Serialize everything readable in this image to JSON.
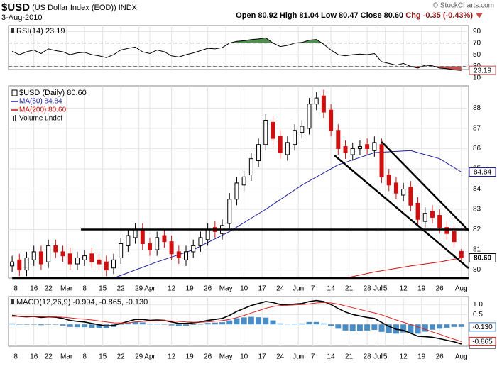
{
  "chart_data": {
    "type": "stock",
    "symbol": "$USD",
    "title": "(US Dollar Index (EOD))",
    "exchange": "INDX",
    "date": "3-Aug-2010",
    "quote": "Open 80.92  High 81.04  Low 80.47  Close 80.60",
    "change": "Chg -0.35 (-0.43%)",
    "source": "© StockCharts.com",
    "x": [
      0,
      2,
      4,
      6,
      8,
      10,
      12,
      14,
      16,
      18,
      20,
      22,
      24,
      26,
      28,
      30,
      32,
      34,
      36,
      38,
      40,
      42,
      44,
      46,
      48,
      50,
      52,
      54,
      56,
      58,
      60,
      62,
      64,
      66,
      68,
      70,
      72,
      74,
      76,
      78,
      80,
      82,
      84,
      86,
      88,
      90,
      92,
      94,
      96,
      98,
      100,
      102,
      104,
      106,
      108,
      110,
      112,
      114,
      116,
      118,
      120,
      122,
      124
    ],
    "xlim": [
      -1,
      126
    ],
    "xticks": [
      {
        "value": 1,
        "label": "8"
      },
      {
        "value": 6,
        "label": "16"
      },
      {
        "value": 10,
        "label": "22"
      },
      {
        "value": 15,
        "label": "Mar"
      },
      {
        "value": 20,
        "label": "8"
      },
      {
        "value": 25,
        "label": "15"
      },
      {
        "value": 30,
        "label": "22"
      },
      {
        "value": 35,
        "label": "29"
      },
      {
        "value": 38,
        "label": "Apr"
      },
      {
        "value": 44,
        "label": "12"
      },
      {
        "value": 49,
        "label": "19"
      },
      {
        "value": 54,
        "label": "26"
      },
      {
        "value": 59,
        "label": "May"
      },
      {
        "value": 64,
        "label": "10"
      },
      {
        "value": 69,
        "label": "17"
      },
      {
        "value": 74,
        "label": "24"
      },
      {
        "value": 79,
        "label": "Jun"
      },
      {
        "value": 83,
        "label": "7"
      },
      {
        "value": 88,
        "label": "14"
      },
      {
        "value": 93,
        "label": "21"
      },
      {
        "value": 98,
        "label": "28"
      },
      {
        "value": 101,
        "label": "Jul"
      },
      {
        "value": 103,
        "label": "5"
      },
      {
        "value": 108,
        "label": "12"
      },
      {
        "value": 113,
        "label": "19"
      },
      {
        "value": 118,
        "label": "26"
      },
      {
        "value": 124,
        "label": "Aug"
      }
    ],
    "panels": [
      {
        "type": "line",
        "title": "RSI(14) 23.19",
        "ylim": [
          10,
          100
        ],
        "yticks": [
          90,
          70,
          50,
          30,
          10
        ],
        "bands": [
          70,
          30
        ],
        "fill_above": {
          "level": 70,
          "color": "#4f8f4f"
        },
        "fill_below": {
          "level": 30,
          "color": "#c0504d"
        },
        "series": [
          {
            "color": "#000000",
            "end_label": "23.19",
            "values": [
              56,
              50,
              55,
              58,
              52,
              60,
              57,
              55,
              50,
              53,
              54,
              50,
              48,
              45,
              50,
              58,
              61,
              63,
              55,
              52,
              58,
              55,
              48,
              46,
              50,
              53,
              57,
              61,
              60,
              62,
              70,
              73,
              74,
              76,
              77,
              79,
              70,
              64,
              66,
              70,
              71,
              75,
              76,
              68,
              58,
              50,
              48,
              50,
              51,
              50,
              52,
              38,
              35,
              32,
              35,
              30,
              27,
              32,
              31,
              27,
              26,
              24,
              23.19
            ]
          }
        ]
      },
      {
        "type": "candlestick",
        "xaxis": true,
        "ylim": [
          79.6,
          89.1
        ],
        "yticks": [
          80,
          81,
          82,
          83,
          84,
          85,
          86,
          87,
          88
        ],
        "candles": {
          "name": "$USD (Daily) 80.60",
          "end_label": "80.60",
          "up_color": "#000000",
          "down_color": "#d01010",
          "open": [
            80.2,
            80.5,
            80.0,
            80.5,
            80.9,
            80.4,
            81.2,
            80.9,
            80.8,
            80.3,
            80.5,
            80.8,
            80.5,
            80.4,
            80.1,
            80.6,
            81.2,
            81.6,
            82.0,
            81.3,
            81.0,
            81.7,
            81.4,
            80.9,
            80.5,
            80.9,
            81.2,
            81.5,
            82.1,
            81.8,
            82.3,
            83.5,
            84.2,
            84.7,
            85.4,
            86.2,
            87.3,
            86.6,
            85.7,
            86.2,
            86.8,
            87.0,
            88.2,
            88.6,
            87.9,
            86.9,
            86.1,
            85.7,
            86.0,
            86.2,
            85.9,
            86.2,
            84.7,
            84.3,
            83.7,
            84.1,
            83.3,
            82.4,
            82.9,
            82.7,
            82.1,
            81.9,
            80.92
          ],
          "high": [
            80.7,
            80.8,
            80.9,
            81.2,
            81.2,
            81.5,
            81.5,
            81.2,
            81.1,
            80.9,
            81.0,
            81.1,
            80.8,
            80.7,
            80.8,
            81.6,
            82.0,
            82.3,
            82.3,
            81.6,
            81.9,
            82.0,
            81.7,
            81.2,
            81.2,
            81.5,
            81.9,
            82.3,
            82.4,
            82.5,
            83.8,
            84.6,
            84.9,
            85.8,
            86.5,
            87.7,
            87.6,
            86.9,
            86.6,
            87.2,
            87.4,
            88.5,
            88.8,
            88.9,
            88.2,
            87.2,
            86.4,
            86.3,
            86.4,
            86.5,
            86.6,
            86.5,
            85.0,
            84.6,
            84.3,
            84.4,
            83.6,
            83.1,
            83.2,
            83.0,
            82.4,
            82.2,
            81.04
          ],
          "low": [
            79.9,
            79.7,
            79.7,
            80.2,
            80.0,
            80.1,
            80.6,
            80.4,
            80.0,
            80.0,
            80.2,
            80.1,
            80.0,
            79.7,
            79.8,
            80.3,
            80.9,
            81.3,
            81.0,
            80.7,
            80.7,
            81.1,
            80.5,
            80.3,
            80.2,
            80.6,
            80.9,
            81.2,
            81.6,
            81.5,
            82.0,
            83.2,
            83.9,
            84.4,
            85.1,
            85.9,
            86.2,
            85.5,
            85.4,
            85.9,
            86.5,
            86.7,
            87.9,
            87.5,
            86.6,
            85.7,
            85.5,
            85.4,
            85.7,
            85.7,
            85.6,
            84.3,
            83.9,
            83.5,
            83.4,
            82.9,
            82.2,
            82.1,
            82.3,
            81.8,
            81.5,
            81.1,
            80.47
          ],
          "close": [
            80.4,
            80.0,
            80.6,
            80.9,
            80.3,
            81.2,
            80.9,
            80.7,
            80.3,
            80.6,
            80.7,
            80.4,
            80.3,
            80.0,
            80.5,
            81.3,
            81.7,
            82.0,
            81.3,
            81.0,
            81.6,
            81.4,
            80.8,
            80.6,
            80.9,
            81.2,
            81.6,
            82.0,
            81.9,
            82.2,
            83.5,
            84.3,
            84.6,
            85.5,
            86.2,
            87.4,
            86.5,
            85.8,
            86.3,
            86.9,
            87.1,
            88.2,
            88.5,
            87.8,
            86.9,
            86.0,
            85.8,
            86.0,
            86.1,
            86.0,
            86.3,
            84.6,
            84.2,
            83.8,
            84.0,
            83.2,
            82.5,
            82.8,
            82.6,
            82.1,
            81.8,
            81.4,
            80.6
          ]
        },
        "overlays": [
          {
            "name": "MA(50) 84.84",
            "color": "#1c1c9c",
            "end_label": "84.84",
            "x": [
              28,
              40,
              50,
              60,
              70,
              80,
              90,
              100,
              110,
              118,
              124
            ],
            "values": [
              79.6,
              80.4,
              81.0,
              81.9,
              83.0,
              84.2,
              85.2,
              85.8,
              85.9,
              85.5,
              84.84
            ]
          },
          {
            "name": "MA(200) 80.60",
            "color": "#d01010",
            "x": [
              92,
              100,
              110,
              118,
              124
            ],
            "values": [
              79.6,
              79.9,
              80.2,
              80.4,
              80.6
            ]
          }
        ],
        "volume_label": "Volume undef",
        "lines": [
          {
            "x": [
              19,
              126
            ],
            "y": [
              82,
              82
            ]
          },
          {
            "x": [
              0,
              126
            ],
            "y": [
              79.6,
              79.6
            ]
          },
          {
            "x": [
              89,
              126
            ],
            "y": [
              85.66,
              80.09
            ]
          },
          {
            "x": [
              102,
              126
            ],
            "y": [
              86.33,
              81.95
            ]
          }
        ]
      },
      {
        "type": "macd",
        "xaxis": true,
        "title": "MACD(12,26,9) -0.994, -0.865, -0.130",
        "ylim": [
          -1.1,
          1.4
        ],
        "yticks": [
          {
            "value": 1,
            "label": "1.0"
          },
          0.5
        ],
        "histogram": {
          "color": "#4a8cc4",
          "end_label": "-0.130",
          "values": [
            0.05,
            0,
            -0.02,
            0,
            -0.04,
            0,
            -0.02,
            -0.06,
            -0.13,
            -0.14,
            -0.14,
            -0.17,
            -0.19,
            -0.2,
            -0.13,
            -0.02,
            0.07,
            0.13,
            0.1,
            0.03,
            0.04,
            0.01,
            -0.05,
            -0.1,
            -0.07,
            -0.03,
            0.01,
            0.07,
            0.09,
            0.11,
            0.2,
            0.31,
            0.35,
            0.38,
            0.36,
            0.34,
            0.2,
            0.05,
            0.02,
            0.04,
            0.05,
            0.12,
            0.12,
            0.05,
            -0.08,
            -0.22,
            -0.31,
            -0.34,
            -0.33,
            -0.31,
            -0.28,
            -0.38,
            -0.45,
            -0.47,
            -0.41,
            -0.44,
            -0.47,
            -0.37,
            -0.27,
            -0.22,
            -0.17,
            -0.13,
            -0.13
          ]
        },
        "series": [
          {
            "color": "#000000",
            "end_label": "-0.994",
            "values": [
              0.45,
              0.4,
              0.38,
              0.4,
              0.35,
              0.38,
              0.36,
              0.3,
              0.2,
              0.15,
              0.12,
              0.05,
              -0.02,
              -0.08,
              -0.05,
              0.05,
              0.15,
              0.25,
              0.25,
              0.2,
              0.22,
              0.2,
              0.12,
              0.05,
              0.05,
              0.08,
              0.12,
              0.2,
              0.25,
              0.3,
              0.45,
              0.65,
              0.8,
              0.95,
              1.05,
              1.15,
              1.1,
              1.0,
              0.98,
              1.02,
              1.05,
              1.15,
              1.2,
              1.15,
              1.0,
              0.8,
              0.62,
              0.5,
              0.42,
              0.35,
              0.3,
              0.1,
              -0.1,
              -0.25,
              -0.3,
              -0.45,
              -0.6,
              -0.62,
              -0.65,
              -0.72,
              -0.8,
              -0.88,
              -0.994
            ]
          },
          {
            "color": "#e02020",
            "end_label": "-0.865",
            "values": [
              0.4,
              0.4,
              0.4,
              0.4,
              0.39,
              0.38,
              0.38,
              0.36,
              0.33,
              0.29,
              0.26,
              0.22,
              0.17,
              0.12,
              0.08,
              0.07,
              0.08,
              0.12,
              0.15,
              0.17,
              0.18,
              0.19,
              0.17,
              0.15,
              0.12,
              0.11,
              0.11,
              0.13,
              0.16,
              0.19,
              0.25,
              0.34,
              0.45,
              0.57,
              0.69,
              0.81,
              0.9,
              0.95,
              0.96,
              0.98,
              1.0,
              1.03,
              1.08,
              1.1,
              1.08,
              1.02,
              0.93,
              0.84,
              0.75,
              0.66,
              0.58,
              0.48,
              0.35,
              0.22,
              0.11,
              -0.01,
              -0.13,
              -0.25,
              -0.38,
              -0.5,
              -0.63,
              -0.75,
              -0.865
            ]
          }
        ]
      }
    ]
  }
}
